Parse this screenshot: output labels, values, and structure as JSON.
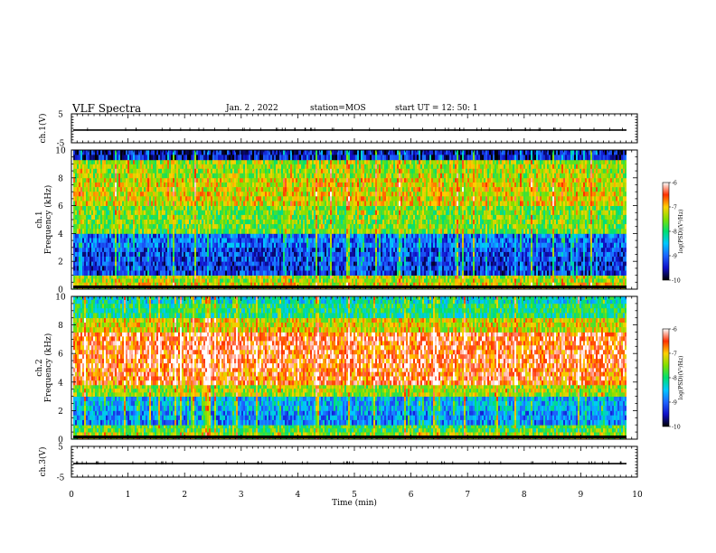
{
  "header": {
    "title": "VLF Spectra",
    "date": "Jan. 2 , 2022",
    "station": "station=MOS",
    "start": "start UT = 12: 50: 1"
  },
  "colormap": [
    "#000000",
    "#1010c8",
    "#1e64ff",
    "#00c8ff",
    "#00e070",
    "#80e000",
    "#ffd000",
    "#ff3000",
    "#ffffff"
  ],
  "chart_data": [
    {
      "type": "line",
      "panel": "ch1-voltage",
      "ylabel": "ch.1(V)",
      "ylim": [
        -5,
        5
      ],
      "yticks": [
        5,
        -5
      ],
      "xlim": [
        0,
        10
      ],
      "series": [
        {
          "values_note": "",
          "x": [
            0,
            10
          ],
          "y": [
            -0.6,
            -0.6
          ]
        }
      ]
    },
    {
      "type": "heatmap",
      "panel": "ch1-spectrogram",
      "ylabel": "ch.1\nFrequency (kHz)",
      "ylim": [
        0,
        10
      ],
      "yticks": [
        0,
        2,
        4,
        6,
        8,
        10
      ],
      "xlim": [
        0,
        10
      ],
      "freq_bands_kHz": [
        0,
        0.5,
        1,
        2,
        3,
        4,
        6,
        8,
        9.3,
        10
      ],
      "band_level_log": [
        -7.2,
        -7.4,
        -9.3,
        -9.2,
        -9.0,
        -7.6,
        -7.2,
        -7.4,
        -9.5
      ],
      "colorbar": {
        "label": "log(PSD)(V²/Hz)",
        "range": [
          -10,
          -6
        ],
        "ticks": [
          -6,
          -7,
          -8,
          -9,
          -10
        ]
      }
    },
    {
      "type": "heatmap",
      "panel": "ch2-spectrogram",
      "ylabel": "ch.2\nFrequency (kHz)",
      "ylim": [
        0,
        10
      ],
      "yticks": [
        0,
        2,
        4,
        6,
        8,
        10
      ],
      "xlim": [
        0,
        10
      ],
      "freq_bands_kHz": [
        0,
        0.5,
        1,
        2,
        3,
        3.8,
        5,
        7.5,
        8.5,
        9.5,
        10
      ],
      "band_level_log": [
        -7.4,
        -7.8,
        -8.8,
        -8.6,
        -7.4,
        -6.6,
        -6.5,
        -7.2,
        -8.0,
        -8.3
      ],
      "colorbar": {
        "label": "log(PSD)(V²/Hz)",
        "range": [
          -10,
          -6
        ],
        "ticks": [
          -6,
          -7,
          -8,
          -9,
          -10
        ]
      }
    },
    {
      "type": "line",
      "panel": "ch3-voltage",
      "ylabel": "ch.3(V)",
      "ylim": [
        -5,
        5
      ],
      "yticks": [
        5,
        -5
      ],
      "xlim": [
        0,
        10
      ],
      "xlabel": "Time (min)",
      "xticks": [
        0,
        1,
        2,
        3,
        4,
        5,
        6,
        7,
        8,
        9,
        10
      ],
      "series": [
        {
          "x": [
            0,
            10
          ],
          "y": [
            -0.6,
            -0.6
          ]
        }
      ]
    }
  ]
}
